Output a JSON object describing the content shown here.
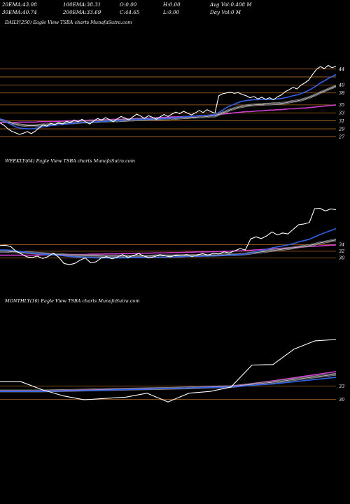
{
  "header": {
    "row1": [
      {
        "label": "20EMA:",
        "value": "43.08"
      },
      {
        "label": "100EMA:",
        "value": "38.31"
      },
      {
        "label": "O:",
        "value": "0.00"
      },
      {
        "label": "H:",
        "value": "0.00"
      },
      {
        "label": "Avg Vol:",
        "value": "0.408  M"
      }
    ],
    "row2": [
      {
        "label": "30EMA:",
        "value": "40.74"
      },
      {
        "label": "200EMA:",
        "value": "33.69"
      },
      {
        "label": "C:",
        "value": "44.65"
      },
      {
        "label": "L:",
        "value": "0.00"
      },
      {
        "label": "Day Vol:",
        "value": "0  M"
      }
    ]
  },
  "panels": {
    "daily": {
      "label": "DAILY(250) Eagle   View  TSBA charts MunafaSutra.com"
    },
    "weekly": {
      "label": "WEEKLY(64) Eagle   View  TSBA charts MunafaSutra.com"
    },
    "monthly": {
      "label": "MONTHLY(16) Eagle   View  TSBA charts MunafaSutra.com"
    }
  },
  "colors": {
    "background": "#000000",
    "gridline": "#b46a1e",
    "price": "#ffffff",
    "ema_fast": "#2f62e8",
    "ema_slow": "#d040d0",
    "ema_mid": "#cfcfcf"
  },
  "chart_data": [
    {
      "type": "line",
      "name": "daily",
      "ylim": [
        26.2,
        45.5
      ],
      "y_ticks": [
        44,
        42,
        40,
        38,
        35,
        33,
        31,
        29,
        27
      ],
      "tick_labels": [
        "44",
        "",
        "40",
        "38",
        "35",
        "33",
        "31",
        "29",
        "27"
      ],
      "series": [
        {
          "key": "price",
          "values": [
            30.5,
            29.9,
            29.0,
            28.4,
            28.0,
            27.6,
            27.9,
            28.3,
            27.8,
            28.4,
            29.2,
            30.0,
            29.7,
            30.4,
            30.0,
            30.6,
            30.2,
            30.9,
            30.6,
            31.2,
            30.8,
            31.4,
            30.7,
            30.2,
            31.0,
            31.6,
            31.2,
            31.8,
            31.3,
            30.8,
            31.5,
            32.1,
            31.7,
            31.2,
            32.0,
            32.7,
            32.2,
            31.6,
            32.3,
            31.9,
            31.4,
            32.0,
            32.6,
            32.1,
            32.7,
            33.2,
            32.8,
            33.4,
            32.9,
            32.5,
            33.0,
            33.6,
            33.1,
            33.8,
            33.3,
            32.9,
            37.3,
            37.8,
            38.0,
            38.2,
            37.9,
            38.1,
            37.6,
            37.3,
            36.8,
            37.1,
            36.5,
            36.9,
            36.4,
            36.8,
            36.3,
            37.0,
            37.5,
            38.3,
            38.8,
            39.4,
            39.0,
            39.9,
            40.5,
            41.2,
            42.6,
            43.9,
            44.6,
            44.1,
            44.9,
            44.3,
            44.7
          ]
        },
        {
          "key": "ema_fast",
          "values": [
            31.5,
            31.0,
            30.5,
            30.0,
            29.5,
            29.2,
            29.1,
            29.0,
            29.0,
            29.1,
            29.3,
            29.5,
            29.6,
            29.8,
            29.9,
            30.0,
            30.1,
            30.2,
            30.3,
            30.4,
            30.5,
            30.6,
            30.6,
            30.6,
            30.7,
            30.8,
            30.8,
            30.9,
            31.0,
            31.0,
            31.0,
            31.1,
            31.2,
            31.2,
            31.3,
            31.4,
            31.4,
            31.4,
            31.5,
            31.5,
            31.5,
            31.5,
            31.6,
            31.6,
            31.7,
            31.8,
            31.9,
            32.0,
            32.1,
            32.1,
            32.2,
            32.3,
            32.3,
            32.4,
            32.5,
            32.5,
            33.1,
            33.7,
            34.3,
            34.8,
            35.2,
            35.6,
            35.9,
            36.1,
            36.2,
            36.3,
            36.3,
            36.4,
            36.4,
            36.4,
            36.4,
            36.5,
            36.6,
            36.8,
            37.0,
            37.3,
            37.5,
            37.8,
            38.2,
            38.6,
            39.2,
            39.8,
            40.5,
            41.0,
            41.6,
            42.1,
            42.6
          ]
        },
        {
          "key": "ema_mid",
          "values": [
            31.3,
            31.0,
            30.7,
            30.4,
            30.2,
            30.0,
            29.9,
            29.8,
            29.8,
            29.8,
            29.9,
            30.0,
            30.0,
            30.1,
            30.2,
            30.3,
            30.3,
            30.4,
            30.5,
            30.5,
            30.6,
            30.7,
            30.7,
            30.7,
            30.8,
            30.8,
            30.9,
            30.9,
            31.0,
            31.0,
            31.0,
            31.1,
            31.1,
            31.2,
            31.2,
            31.3,
            31.3,
            31.3,
            31.4,
            31.4,
            31.4,
            31.4,
            31.5,
            31.5,
            31.6,
            31.6,
            31.7,
            31.8,
            31.8,
            31.9,
            31.9,
            32.0,
            32.0,
            32.1,
            32.2,
            32.2,
            32.6,
            33.0,
            33.4,
            33.8,
            34.1,
            34.4,
            34.6,
            34.8,
            34.9,
            35.0,
            35.1,
            35.1,
            35.2,
            35.2,
            35.3,
            35.3,
            35.4,
            35.5,
            35.7,
            35.9,
            36.0,
            36.2,
            36.5,
            36.8,
            37.2,
            37.6,
            38.1,
            38.5,
            38.9,
            39.3,
            39.7
          ]
        },
        {
          "key": "ema_slow",
          "values": [
            30.6,
            30.6,
            30.6,
            30.6,
            30.6,
            30.7,
            30.7,
            30.7,
            30.7,
            30.7,
            30.8,
            30.8,
            30.8,
            30.8,
            30.9,
            30.9,
            30.9,
            31.0,
            31.0,
            31.0,
            31.1,
            31.1,
            31.1,
            31.2,
            31.2,
            31.2,
            31.3,
            31.3,
            31.3,
            31.4,
            31.4,
            31.4,
            31.5,
            31.5,
            31.5,
            31.6,
            31.6,
            31.7,
            31.7,
            31.7,
            31.8,
            31.8,
            31.9,
            31.9,
            32.0,
            32.0,
            32.0,
            32.1,
            32.1,
            32.2,
            32.2,
            32.3,
            32.3,
            32.4,
            32.4,
            32.5,
            32.6,
            32.7,
            32.8,
            32.9,
            33.0,
            33.1,
            33.2,
            33.3,
            33.3,
            33.4,
            33.5,
            33.5,
            33.6,
            33.7,
            33.7,
            33.8,
            33.8,
            33.9,
            34.0,
            34.0,
            34.1,
            34.2,
            34.2,
            34.3,
            34.4,
            34.5,
            34.6,
            34.7,
            34.8,
            34.9,
            35.0
          ]
        }
      ]
    },
    {
      "type": "line",
      "name": "weekly",
      "ylim": [
        26.5,
        46.5
      ],
      "y_ticks": [
        34,
        32,
        30
      ],
      "tick_labels": [
        "34",
        "32",
        "30"
      ],
      "series": [
        {
          "key": "price",
          "values": [
            33.7,
            33.8,
            33.4,
            32.0,
            31.2,
            30.3,
            30.1,
            30.5,
            29.8,
            30.4,
            31.4,
            30.2,
            28.3,
            28.0,
            28.3,
            29.3,
            30.0,
            28.5,
            28.8,
            30.0,
            30.3,
            29.7,
            30.2,
            31.0,
            30.1,
            30.7,
            31.3,
            30.5,
            30.0,
            30.4,
            31.0,
            30.6,
            30.3,
            30.9,
            30.6,
            31.0,
            30.4,
            30.9,
            31.3,
            30.8,
            31.4,
            31.2,
            31.8,
            31.5,
            32.1,
            32.8,
            32.4,
            35.7,
            36.3,
            35.8,
            36.6,
            37.8,
            36.9,
            37.5,
            37.2,
            38.6,
            40.0,
            40.2,
            40.6,
            44.8,
            44.9,
            44.1,
            44.7,
            44.5
          ]
        },
        {
          "key": "ema_fast",
          "values": [
            32.4,
            32.4,
            32.3,
            32.1,
            31.9,
            31.7,
            31.5,
            31.3,
            31.1,
            31.0,
            30.9,
            30.8,
            30.6,
            30.4,
            30.3,
            30.2,
            30.2,
            30.1,
            30.0,
            30.0,
            30.0,
            30.0,
            30.0,
            30.0,
            30.0,
            30.1,
            30.1,
            30.1,
            30.1,
            30.2,
            30.2,
            30.2,
            30.3,
            30.3,
            30.3,
            30.4,
            30.4,
            30.4,
            30.5,
            30.5,
            30.6,
            30.6,
            30.7,
            30.8,
            30.9,
            31.0,
            31.1,
            31.5,
            31.9,
            32.2,
            32.6,
            33.0,
            33.3,
            33.6,
            33.9,
            34.3,
            34.8,
            35.2,
            35.6,
            36.3,
            37.0,
            37.6,
            38.2,
            38.8
          ]
        },
        {
          "key": "ema_mid",
          "values": [
            32.0,
            32.0,
            31.9,
            31.8,
            31.7,
            31.6,
            31.5,
            31.4,
            31.3,
            31.2,
            31.1,
            31.0,
            30.9,
            30.8,
            30.7,
            30.7,
            30.6,
            30.6,
            30.6,
            30.5,
            30.5,
            30.5,
            30.5,
            30.5,
            30.5,
            30.5,
            30.5,
            30.5,
            30.5,
            30.6,
            30.6,
            30.6,
            30.6,
            30.6,
            30.7,
            30.7,
            30.7,
            30.7,
            30.8,
            30.8,
            30.8,
            30.9,
            30.9,
            31.0,
            31.0,
            31.1,
            31.2,
            31.4,
            31.6,
            31.8,
            32.0,
            32.2,
            32.4,
            32.6,
            32.8,
            33.0,
            33.3,
            33.5,
            33.7,
            34.1,
            34.5,
            34.8,
            35.1,
            35.4
          ]
        },
        {
          "key": "ema_slow",
          "values": [
            30.8,
            30.8,
            30.8,
            30.8,
            30.8,
            30.8,
            30.8,
            30.8,
            30.9,
            30.9,
            30.9,
            30.9,
            30.9,
            31.0,
            31.0,
            31.0,
            31.0,
            31.1,
            31.1,
            31.1,
            31.2,
            31.2,
            31.2,
            31.3,
            31.3,
            31.3,
            31.4,
            31.4,
            31.4,
            31.5,
            31.5,
            31.5,
            31.6,
            31.6,
            31.6,
            31.7,
            31.7,
            31.8,
            31.8,
            31.8,
            31.9,
            31.9,
            32.0,
            32.0,
            32.1,
            32.1,
            32.2,
            32.3,
            32.4,
            32.5,
            32.6,
            32.7,
            32.8,
            32.9,
            33.0,
            33.1,
            33.2,
            33.3,
            33.4,
            33.5,
            33.6,
            33.7,
            33.8,
            33.9
          ]
        }
      ]
    },
    {
      "type": "line",
      "name": "monthly",
      "ylim": [
        25.3,
        44.4
      ],
      "y_ticks": [
        33,
        30
      ],
      "tick_labels": [
        "33",
        "30"
      ],
      "series": [
        {
          "key": "price",
          "values": [
            34.0,
            34.0,
            32.2,
            30.8,
            29.9,
            30.2,
            30.5,
            31.4,
            29.4,
            31.4,
            31.8,
            32.8,
            37.8,
            37.9,
            41.4,
            43.3,
            43.6
          ]
        },
        {
          "key": "ema_fast",
          "values": [
            31.8,
            31.8,
            31.8,
            31.9,
            32.0,
            32.1,
            32.2,
            32.3,
            32.5,
            32.6,
            32.7,
            32.8,
            33.2,
            33.5,
            34.0,
            34.5,
            35.0
          ]
        },
        {
          "key": "ema_mid",
          "values": [
            31.9,
            31.9,
            31.9,
            32.0,
            32.1,
            32.2,
            32.3,
            32.4,
            32.5,
            32.6,
            32.8,
            32.9,
            33.4,
            33.9,
            34.5,
            35.1,
            35.7
          ]
        },
        {
          "key": "ema_slow",
          "values": [
            31.9,
            31.9,
            31.9,
            32.0,
            32.1,
            32.2,
            32.3,
            32.4,
            32.5,
            32.6,
            32.8,
            32.9,
            33.6,
            34.2,
            34.9,
            35.6,
            36.3
          ]
        }
      ]
    }
  ]
}
